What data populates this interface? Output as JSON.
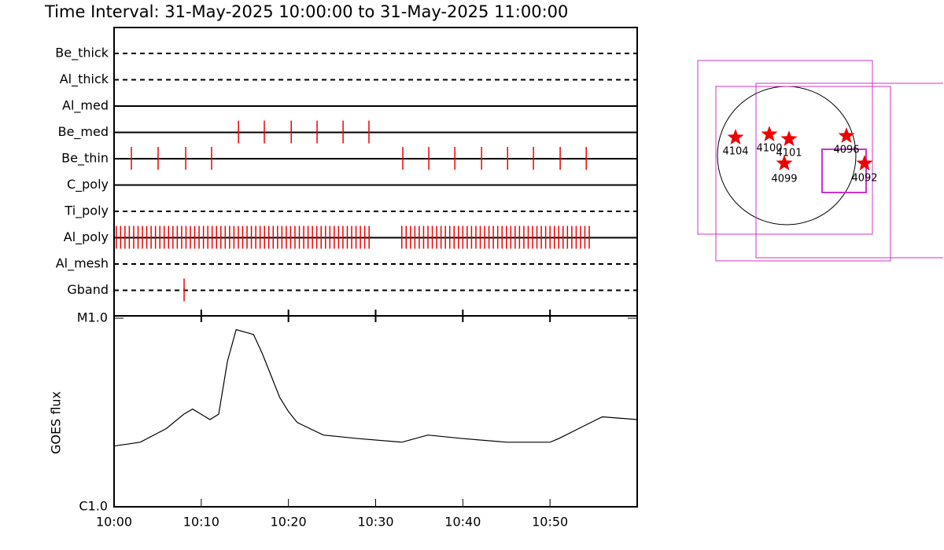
{
  "chart_data": [
    {
      "type": "filter-timeline",
      "title": "Time Interval: 31-May-2025 10:00:00 to 31-May-2025 11:00:00",
      "xlim": [
        "10:00",
        "11:00"
      ],
      "color": "#ee0000",
      "filters": [
        {
          "name": "Be_thick",
          "line": "dashed",
          "times": []
        },
        {
          "name": "Al_thick",
          "line": "dashed",
          "times": []
        },
        {
          "name": "Al_med",
          "line": "solid",
          "times": []
        },
        {
          "name": "Be_med",
          "line": "solid",
          "times": [
            "10:14:16",
            "10:17:14",
            "10:20:19",
            "10:23:17",
            "10:26:16",
            "10:29:14"
          ]
        },
        {
          "name": "Be_thin",
          "line": "solid",
          "times": [
            "10:01:59",
            "10:05:03",
            "10:08:13",
            "10:11:11",
            "10:33:07",
            "10:36:06",
            "10:39:05",
            "10:42:09",
            "10:45:08",
            "10:48:06",
            "10:51:10",
            "10:54:09"
          ]
        },
        {
          "name": "C_poly",
          "line": "solid",
          "times": []
        },
        {
          "name": "Ti_poly",
          "line": "dashed",
          "times": []
        },
        {
          "name": "Al_poly",
          "line": "solid",
          "times": [
            "10:00:15",
            "10:00:45",
            "10:01:15",
            "10:01:45",
            "10:02:15",
            "10:02:45",
            "10:03:15",
            "10:03:45",
            "10:04:15",
            "10:04:45",
            "10:05:15",
            "10:05:45",
            "10:06:15",
            "10:06:45",
            "10:07:15",
            "10:07:45",
            "10:08:15",
            "10:08:45",
            "10:09:15",
            "10:09:45",
            "10:10:15",
            "10:10:45",
            "10:11:15",
            "10:11:45",
            "10:12:15",
            "10:12:45",
            "10:13:15",
            "10:13:45",
            "10:14:15",
            "10:14:45",
            "10:15:15",
            "10:15:45",
            "10:16:15",
            "10:16:45",
            "10:17:15",
            "10:17:45",
            "10:18:15",
            "10:18:45",
            "10:19:15",
            "10:19:45",
            "10:20:15",
            "10:20:45",
            "10:21:15",
            "10:21:45",
            "10:22:15",
            "10:22:45",
            "10:23:15",
            "10:23:45",
            "10:24:15",
            "10:24:45",
            "10:25:15",
            "10:25:45",
            "10:26:15",
            "10:26:45",
            "10:27:15",
            "10:27:45",
            "10:28:15",
            "10:28:45",
            "10:29:15",
            "10:33:00",
            "10:33:30",
            "10:34:00",
            "10:34:30",
            "10:35:00",
            "10:35:30",
            "10:36:00",
            "10:36:30",
            "10:37:00",
            "10:37:30",
            "10:38:00",
            "10:38:30",
            "10:39:00",
            "10:39:30",
            "10:40:00",
            "10:40:30",
            "10:41:00",
            "10:41:30",
            "10:42:00",
            "10:42:30",
            "10:43:00",
            "10:43:30",
            "10:44:00",
            "10:44:30",
            "10:45:00",
            "10:45:30",
            "10:46:00",
            "10:46:30",
            "10:47:00",
            "10:47:30",
            "10:48:00",
            "10:48:30",
            "10:49:00",
            "10:49:30",
            "10:50:00",
            "10:50:30",
            "10:51:00",
            "10:51:30",
            "10:52:00",
            "10:52:30",
            "10:53:00",
            "10:53:30",
            "10:54:00",
            "10:54:30"
          ]
        },
        {
          "name": "Al_mesh",
          "line": "dashed",
          "times": []
        },
        {
          "name": "Gband",
          "line": "dashed",
          "times": [
            "10:08:02"
          ]
        }
      ]
    },
    {
      "type": "line",
      "ylabel": "GOES flux",
      "log_scale": true,
      "color": "#000000",
      "x": [
        "10:00",
        "10:03",
        "10:06",
        "10:08",
        "10:09",
        "10:11",
        "10:12",
        "10:13",
        "10:14",
        "10:16",
        "10:17",
        "10:19",
        "10:20",
        "10:21",
        "10:24",
        "10:28",
        "10:33",
        "10:36",
        "10:40",
        "10:45",
        "10:50",
        "10:51",
        "10:54",
        "10:56",
        "11:00"
      ],
      "values": [
        2.1e-06,
        2.2e-06,
        2.6e-06,
        3.1e-06,
        3.3e-06,
        2.9e-06,
        3.1e-06,
        5.9e-06,
        8.7e-06,
        8.2e-06,
        6.5e-06,
        3.8e-06,
        3.2e-06,
        2.8e-06,
        2.4e-06,
        2.3e-06,
        2.2e-06,
        2.4e-06,
        2.3e-06,
        2.2e-06,
        2.2e-06,
        2.3e-06,
        2.7e-06,
        3e-06,
        2.9e-06
      ],
      "xlim": [
        "10:00",
        "11:00"
      ],
      "xticks": [
        "10:00",
        "10:10",
        "10:20",
        "10:30",
        "10:40",
        "10:50"
      ],
      "ylim": [
        1e-06,
        1e-05
      ],
      "yticks": [
        {
          "value": 1e-06,
          "label": "C1.0"
        },
        {
          "value": 1e-05,
          "label": "M1.0"
        }
      ]
    }
  ],
  "overview": {
    "regions": [
      {
        "label": "4104"
      },
      {
        "label": "4100"
      },
      {
        "label": "4101"
      },
      {
        "label": "4099"
      },
      {
        "label": "4096"
      },
      {
        "label": "4092"
      }
    ]
  }
}
